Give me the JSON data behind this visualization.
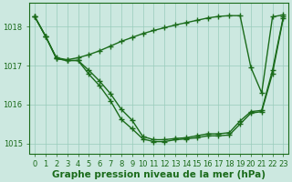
{
  "title": "Graphe pression niveau de la mer (hPa)",
  "hours": [
    0,
    1,
    2,
    3,
    4,
    5,
    6,
    7,
    8,
    9,
    10,
    11,
    12,
    13,
    14,
    15,
    16,
    17,
    18,
    19,
    20,
    21,
    22,
    23
  ],
  "line_top": [
    1018.25,
    1017.75,
    1017.2,
    1017.15,
    1017.2,
    1017.28,
    1017.38,
    1017.5,
    1017.62,
    1017.72,
    1017.82,
    1017.9,
    1017.97,
    1018.04,
    1018.1,
    1018.16,
    1018.22,
    1018.26,
    1018.28,
    1018.28,
    1016.95,
    1016.3,
    1018.25,
    1018.3
  ],
  "line_mid": [
    1018.25,
    1017.75,
    1017.18,
    1017.13,
    1017.13,
    1016.88,
    1016.6,
    1016.28,
    1015.88,
    1015.6,
    1015.18,
    1015.1,
    1015.1,
    1015.13,
    1015.15,
    1015.2,
    1015.25,
    1015.25,
    1015.28,
    1015.58,
    1015.82,
    1015.85,
    1016.88,
    1018.25
  ],
  "line_bot": [
    1018.25,
    1017.75,
    1017.18,
    1017.13,
    1017.13,
    1016.78,
    1016.48,
    1016.1,
    1015.62,
    1015.38,
    1015.12,
    1015.05,
    1015.05,
    1015.1,
    1015.12,
    1015.15,
    1015.2,
    1015.2,
    1015.22,
    1015.5,
    1015.78,
    1015.82,
    1016.8,
    1018.22
  ],
  "line_color": "#1a6b1a",
  "bg_color": "#cce8e0",
  "grid_color": "#99ccbb",
  "ylim": [
    1014.75,
    1018.6
  ],
  "yticks": [
    1015,
    1016,
    1017,
    1018
  ],
  "marker": "+",
  "marker_size": 4,
  "linewidth": 1.0,
  "tick_fontsize": 6.0,
  "title_fontsize": 7.5,
  "title_fontweight": "bold"
}
